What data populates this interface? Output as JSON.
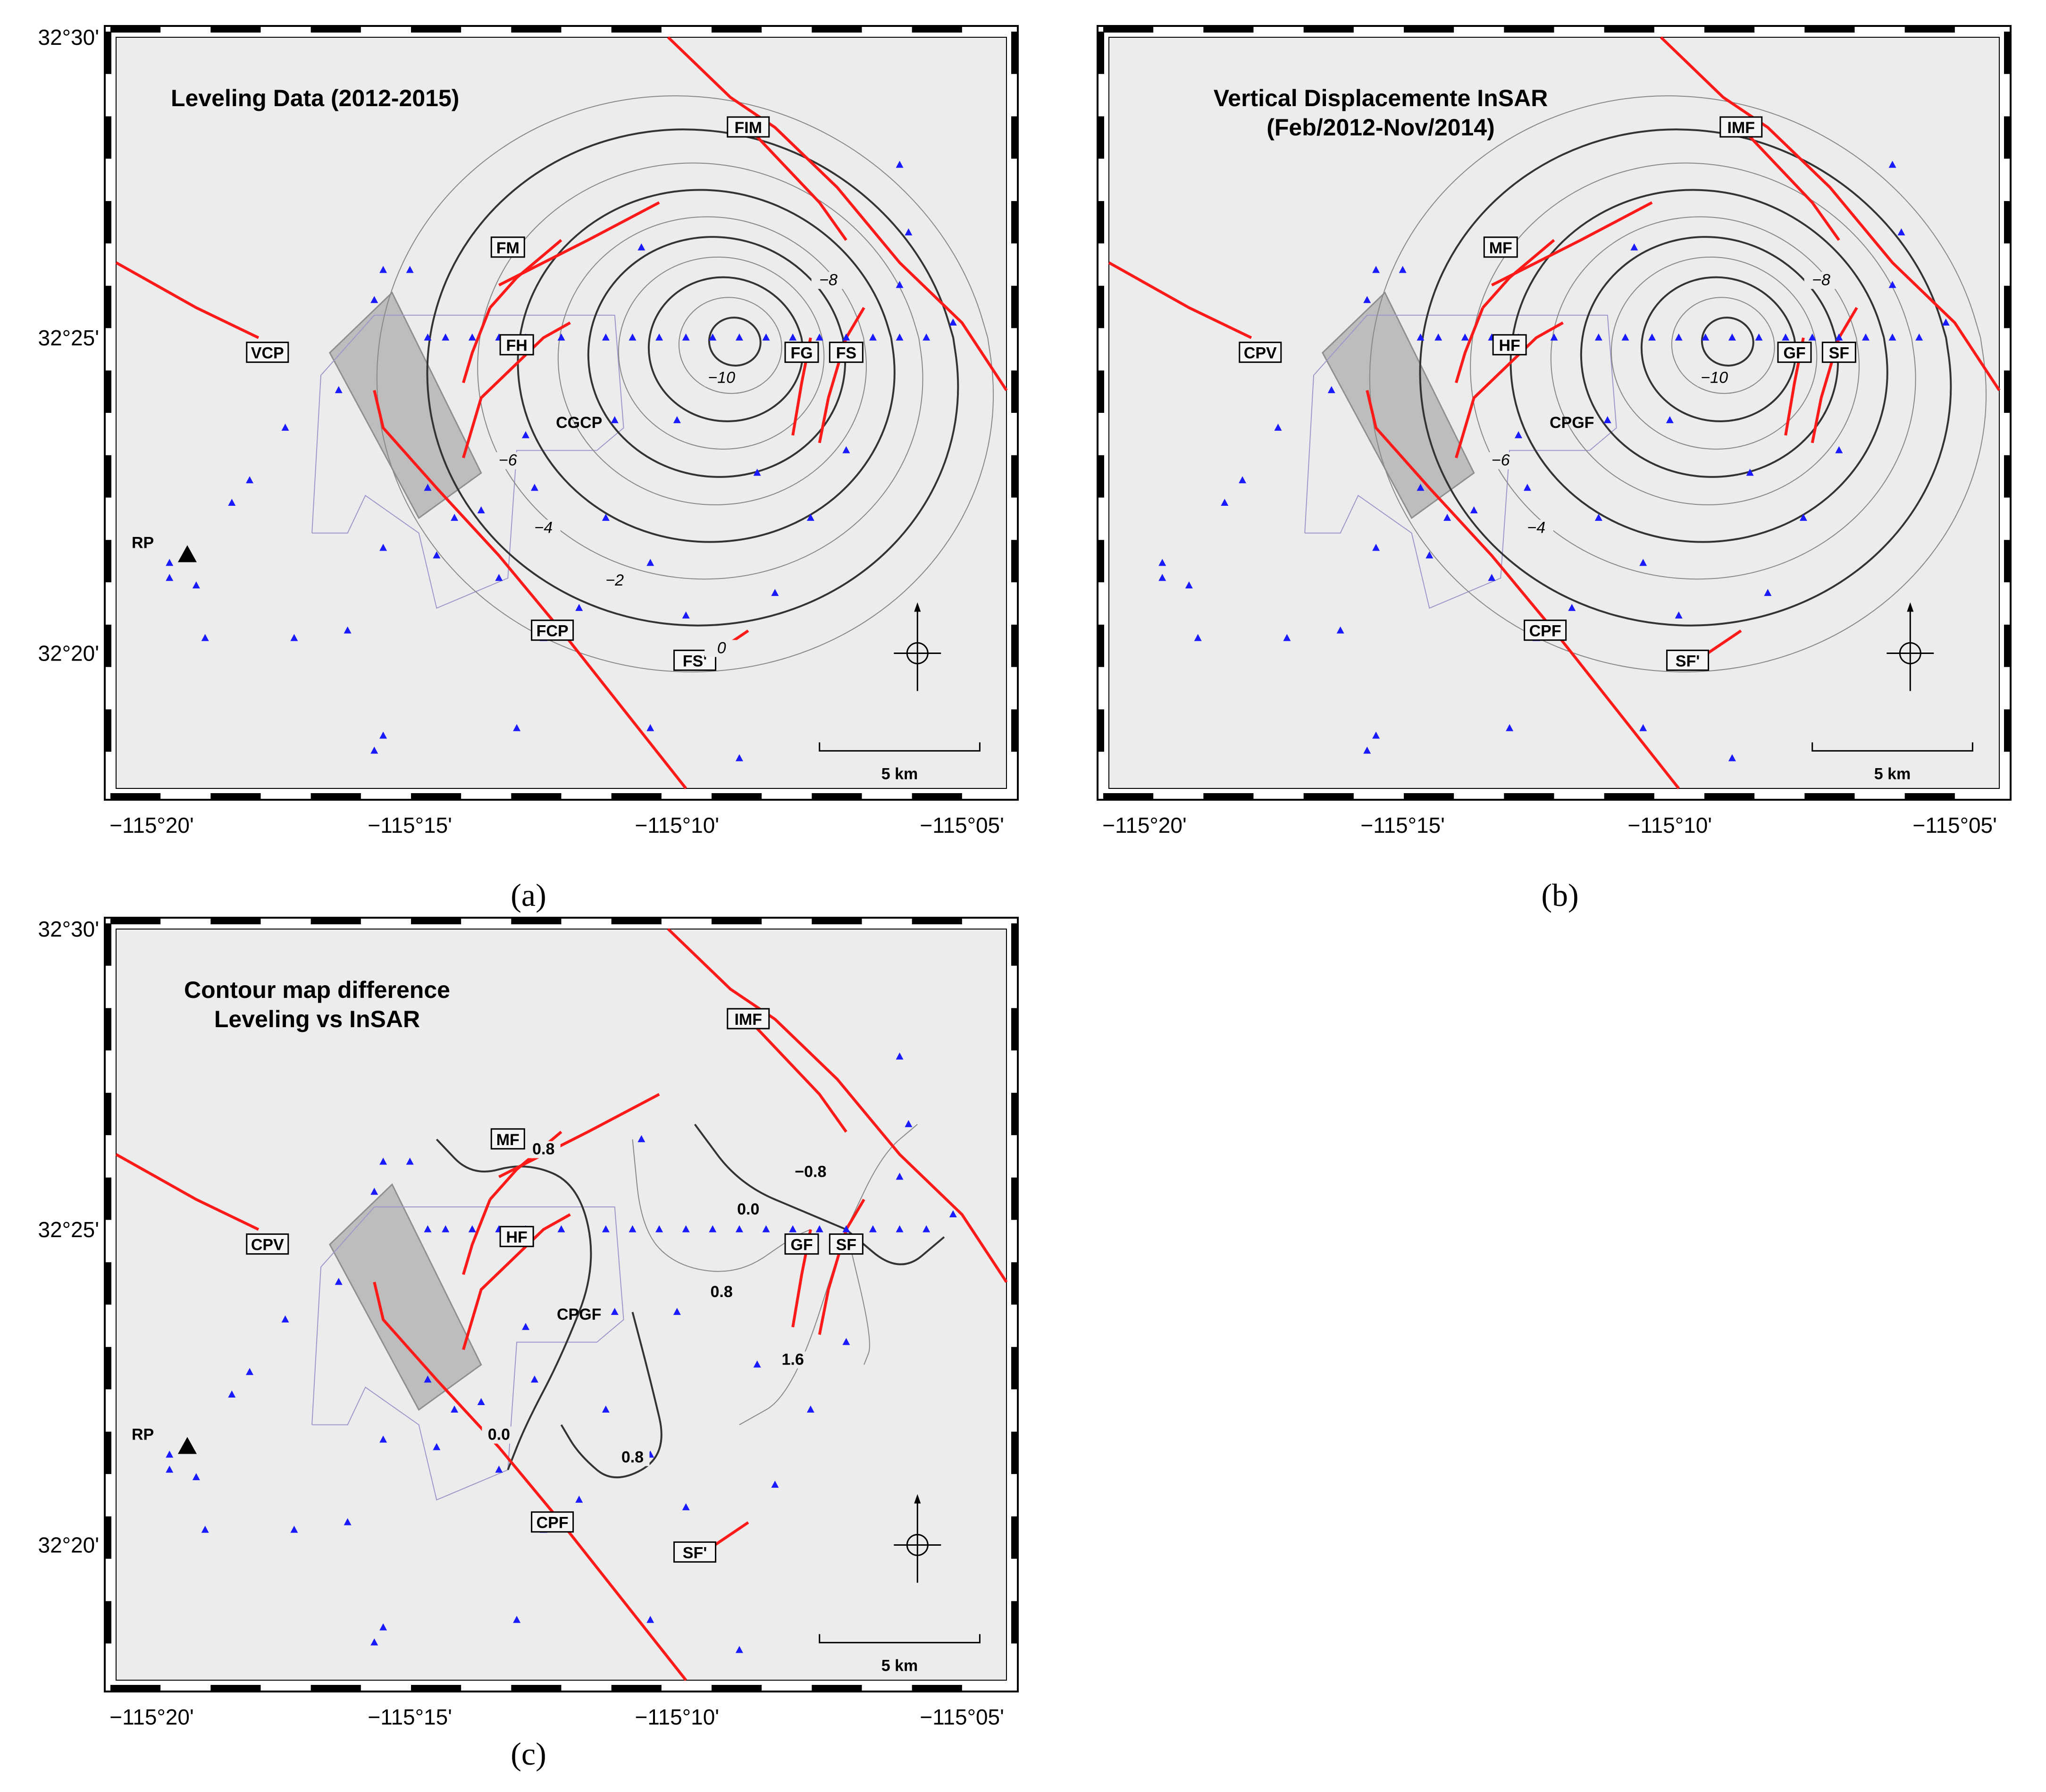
{
  "figure": {
    "panels": [
      {
        "id": "a",
        "caption": "(a)",
        "title_lines": [
          "Leveling Data (2012-2015)"
        ],
        "x_ticks": [
          "−115°20'",
          "−115°15'",
          "−115°10'",
          "−115°05'"
        ],
        "y_ticks": [
          "32°30'",
          "32°25'",
          "32°20'"
        ],
        "fault_labels": [
          "FIM",
          "FM",
          "FH",
          "FG",
          "FS",
          "FCP",
          "FS'",
          "VCP"
        ],
        "plain_labels": [
          "CGCP",
          "RP"
        ],
        "contour_labels": [
          "−10",
          "−8",
          "−6",
          "−4",
          "−2",
          "0"
        ],
        "scale_label": "5 km"
      },
      {
        "id": "b",
        "caption": "(b)",
        "title_lines": [
          "Vertical Displacemente InSAR",
          "(Feb/2012-Nov/2014)"
        ],
        "x_ticks": [
          "−115°20'",
          "−115°15'",
          "−115°10'",
          "−115°05'"
        ],
        "y_ticks": [],
        "fault_labels": [
          "IMF",
          "MF",
          "HF",
          "GF",
          "SF",
          "CPF",
          "SF'",
          "CPV"
        ],
        "plain_labels": [
          "CPGF"
        ],
        "contour_labels": [
          "−10",
          "−8",
          "−6",
          "−4"
        ],
        "scale_label": "5 km"
      },
      {
        "id": "c",
        "caption": "(c)",
        "title_lines": [
          "Contour map difference",
          "Leveling vs InSAR"
        ],
        "x_ticks": [
          "−115°20'",
          "−115°15'",
          "−115°10'",
          "−115°05'"
        ],
        "y_ticks": [
          "32°30'",
          "32°25'",
          "32°20'"
        ],
        "fault_labels": [
          "IMF",
          "MF",
          "HF",
          "GF",
          "SF",
          "CPF",
          "SF'",
          "CPV"
        ],
        "plain_labels": [
          "CPGF",
          "RP"
        ],
        "contour_labels": [
          "−0.8",
          "0.0",
          "0.8",
          "0.8",
          "1.6",
          "0.0",
          "0.8"
        ],
        "scale_label": "5 km"
      }
    ],
    "colors": {
      "fault": "#ff1a1a",
      "station": "#1a1aff",
      "map_bg": "#ececec",
      "contour": "#333333",
      "area": "#a9a9a9"
    },
    "icons": [
      "station-triangle-icon",
      "north-arrow-icon",
      "reference-point-icon",
      "red-flag-icon"
    ]
  }
}
